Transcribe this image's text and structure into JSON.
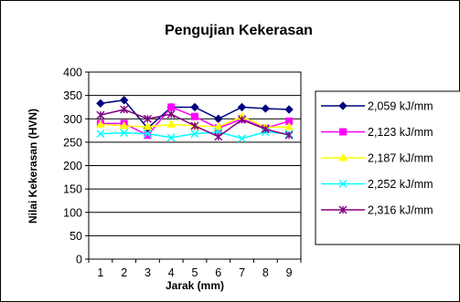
{
  "chart_data": {
    "type": "line",
    "title": "Pengujian Kekerasan",
    "xlabel": "Jarak (mm)",
    "ylabel": "Nilai Kekerasan (HVN)",
    "categories": [
      "1",
      "2",
      "3",
      "4",
      "5",
      "6",
      "7",
      "8",
      "9"
    ],
    "ylim": [
      0,
      400
    ],
    "yticks": [
      "0",
      "50",
      "100",
      "150",
      "200",
      "250",
      "300",
      "350",
      "400"
    ],
    "grid": true,
    "legend_position": "right",
    "series": [
      {
        "name": "2,059 kJ/mm",
        "color": "#000080",
        "marker": "diamond",
        "values": [
          333,
          340,
          280,
          325,
          325,
          300,
          325,
          322,
          320
        ]
      },
      {
        "name": "2,123 kJ/mm",
        "color": "#ff00ff",
        "marker": "square",
        "values": [
          290,
          290,
          265,
          325,
          305,
          280,
          300,
          280,
          295
        ]
      },
      {
        "name": "2,187 kJ/mm",
        "color": "#ffff00",
        "marker": "triangle",
        "values": [
          288,
          285,
          283,
          288,
          285,
          283,
          305,
          282,
          283
        ]
      },
      {
        "name": "2,252 kJ/mm",
        "color": "#00ffff",
        "marker": "x",
        "values": [
          268,
          270,
          268,
          260,
          268,
          272,
          258,
          272,
          268
        ]
      },
      {
        "name": "2,316 kJ/mm",
        "color": "#800080",
        "marker": "star",
        "values": [
          308,
          320,
          300,
          310,
          285,
          262,
          298,
          278,
          265
        ]
      }
    ]
  }
}
